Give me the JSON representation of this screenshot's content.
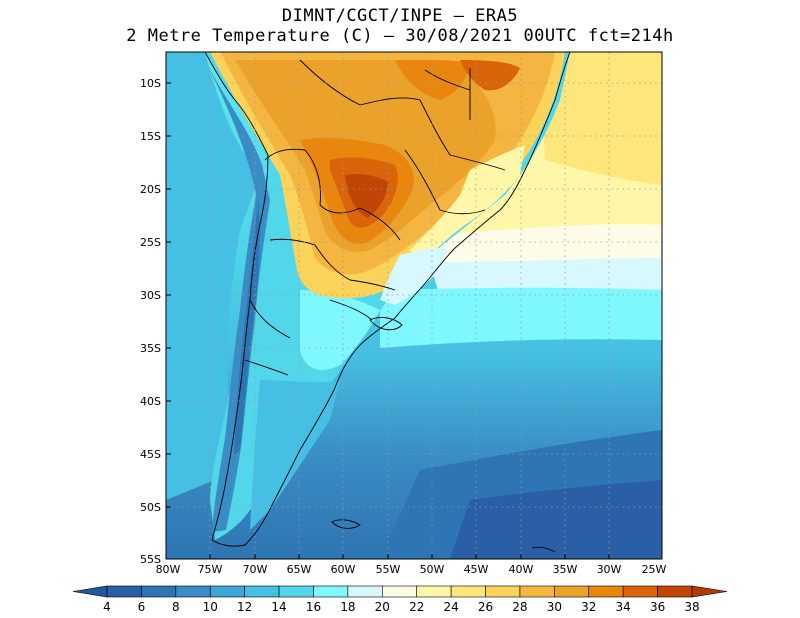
{
  "title": {
    "line1": "DIMNT/CGCT/INPE –  ERA5",
    "line2": "2 Metre Temperature (C) –  30/08/2021 00UTC fct=214h"
  },
  "map": {
    "variable": "2 Metre Temperature",
    "units": "C",
    "lat_labels": [
      "10S",
      "15S",
      "20S",
      "25S",
      "30S",
      "35S",
      "40S",
      "45S",
      "50S",
      "55S"
    ],
    "lon_labels": [
      "80W",
      "75W",
      "70W",
      "65W",
      "60W",
      "55W",
      "50W",
      "45W",
      "40W",
      "35W",
      "30W",
      "25W"
    ],
    "lat_range": [
      -55,
      -7
    ],
    "lon_range": [
      -80,
      -24
    ]
  },
  "colorbar": {
    "levels": [
      4,
      6,
      8,
      10,
      12,
      14,
      16,
      18,
      20,
      22,
      24,
      26,
      28,
      30,
      32,
      34,
      36,
      38
    ],
    "colors": [
      "#2a5fa6",
      "#2e75b3",
      "#3a8cc4",
      "#3fa4d6",
      "#45bfe3",
      "#52d7ea",
      "#7ff7ff",
      "#d7f8ff",
      "#fffbe9",
      "#fff7a8",
      "#ffe67a",
      "#fbd35a",
      "#f4b641",
      "#eba22a",
      "#e8860e",
      "#d9640a",
      "#c14605"
    ],
    "under_color": "#2257a0",
    "over_color": "#b43a05"
  }
}
